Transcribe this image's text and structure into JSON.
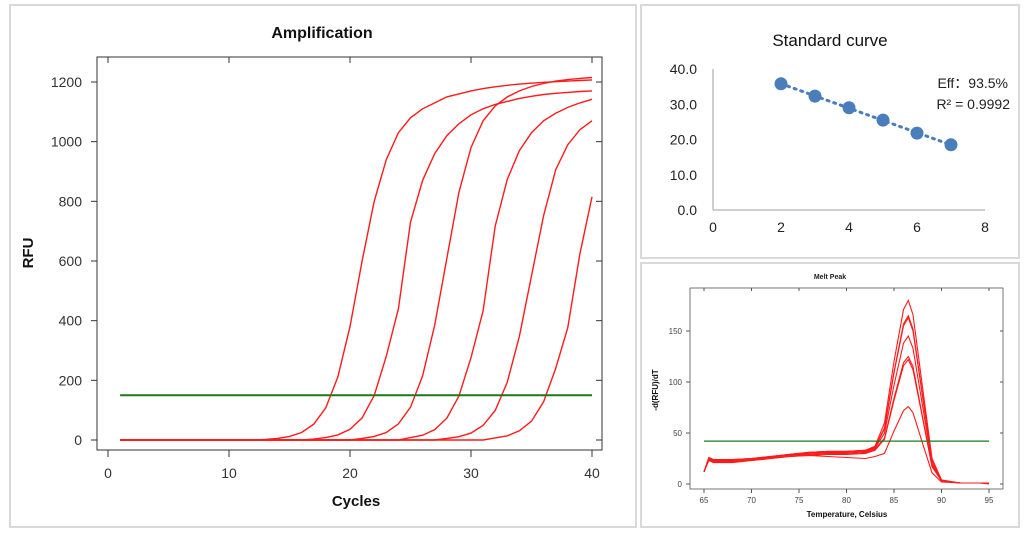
{
  "colors": {
    "curve": "#ff1a1a",
    "threshold": "#1a7a1a",
    "point": "#4a7ebb",
    "panel_border": "#d9d9d9"
  },
  "chart_data": [
    {
      "type": "line",
      "title": "Amplification",
      "xlabel": "Cycles",
      "ylabel": "RFU",
      "xlim": [
        0,
        40
      ],
      "ylim": [
        0,
        1200
      ],
      "xticks": [
        "0",
        "10",
        "20",
        "30",
        "40"
      ],
      "yticks": [
        "0",
        "200",
        "400",
        "600",
        "800",
        "1000",
        "1200"
      ],
      "threshold": 150,
      "grid": false,
      "x": [
        1,
        2,
        3,
        4,
        5,
        6,
        7,
        8,
        9,
        10,
        11,
        12,
        13,
        14,
        15,
        16,
        17,
        18,
        19,
        20,
        21,
        22,
        23,
        24,
        25,
        26,
        27,
        28,
        29,
        30,
        31,
        32,
        33,
        34,
        35,
        36,
        37,
        38,
        39,
        40
      ],
      "series": [
        {
          "values": [
            0,
            0,
            0,
            0,
            0,
            0,
            0,
            0,
            0,
            0,
            0,
            0,
            2,
            5,
            12,
            25,
            53,
            108,
            212,
            380,
            600,
            800,
            940,
            1030,
            1080,
            1110,
            1130,
            1150,
            1160,
            1170,
            1178,
            1184,
            1189,
            1193,
            1196,
            1199,
            1201,
            1203,
            1205,
            1207
          ]
        },
        {
          "values": [
            0,
            0,
            0,
            0,
            0,
            0,
            0,
            0,
            0,
            0,
            0,
            0,
            0,
            0,
            0,
            0,
            3,
            8,
            17,
            36,
            74,
            149,
            281,
            440,
            730,
            870,
            960,
            1020,
            1060,
            1090,
            1110,
            1125,
            1135,
            1145,
            1152,
            1158,
            1162,
            1165,
            1168,
            1170
          ]
        },
        {
          "values": [
            0,
            0,
            0,
            0,
            0,
            0,
            0,
            0,
            0,
            0,
            0,
            0,
            0,
            0,
            0,
            0,
            0,
            0,
            0,
            0,
            5,
            12,
            25,
            54,
            110,
            215,
            385,
            608,
            830,
            980,
            1070,
            1120,
            1150,
            1170,
            1185,
            1195,
            1203,
            1208,
            1212,
            1215
          ]
        },
        {
          "values": [
            0,
            0,
            0,
            0,
            0,
            0,
            0,
            0,
            0,
            0,
            0,
            0,
            0,
            0,
            0,
            0,
            0,
            0,
            0,
            0,
            0,
            0,
            0,
            0,
            8,
            16,
            35,
            73,
            147,
            276,
            433,
            717,
            874,
            970,
            1030,
            1070,
            1095,
            1115,
            1130,
            1142
          ]
        },
        {
          "values": [
            0,
            0,
            0,
            0,
            0,
            0,
            0,
            0,
            0,
            0,
            0,
            0,
            0,
            0,
            0,
            0,
            0,
            0,
            0,
            0,
            0,
            0,
            0,
            0,
            0,
            0,
            0,
            5,
            11,
            23,
            49,
            99,
            194,
            348,
            550,
            752,
            906,
            990,
            1040,
            1070
          ]
        },
        {
          "values": [
            0,
            0,
            0,
            0,
            0,
            0,
            0,
            0,
            0,
            0,
            0,
            0,
            0,
            0,
            0,
            0,
            0,
            0,
            0,
            0,
            0,
            0,
            0,
            0,
            0,
            0,
            0,
            0,
            0,
            0,
            0,
            7,
            14,
            31,
            63,
            128,
            240,
            377,
            624,
            815
          ]
        }
      ]
    },
    {
      "type": "scatter",
      "title": "Standard curve",
      "xlim": [
        0,
        8
      ],
      "ylim": [
        0,
        40
      ],
      "xticks": [
        "0",
        "2",
        "4",
        "6",
        "8"
      ],
      "yticks": [
        "0.0",
        "10.0",
        "20.0",
        "30.0",
        "40.0"
      ],
      "trendline": "dotted linear",
      "points": [
        {
          "x": 2,
          "y": 35.8
        },
        {
          "x": 3,
          "y": 32.3
        },
        {
          "x": 4,
          "y": 29.0
        },
        {
          "x": 5,
          "y": 25.5
        },
        {
          "x": 6,
          "y": 21.8
        },
        {
          "x": 7,
          "y": 18.5
        }
      ],
      "annotations": [
        "Eff：93.5%",
        "R² = 0.9992"
      ]
    },
    {
      "type": "line",
      "title": "Melt Peak",
      "xlabel": "Temperature, Celsius",
      "ylabel": "-d(RFU)/dT",
      "xlim": [
        65,
        95
      ],
      "ylim": [
        0,
        185
      ],
      "xticks": [
        "65",
        "70",
        "75",
        "80",
        "85",
        "90",
        "95"
      ],
      "yticks": [
        "0",
        "50",
        "100",
        "150"
      ],
      "threshold": 42,
      "x": [
        65,
        65.5,
        66,
        68,
        70,
        72,
        74,
        76,
        78,
        80,
        82,
        83,
        84,
        85,
        86,
        86.5,
        87,
        88,
        89,
        90,
        92,
        94,
        95
      ],
      "series": [
        {
          "values": [
            12,
            26,
            24,
            24,
            25,
            27,
            29,
            31,
            32,
            32,
            33,
            37,
            60,
            120,
            171,
            180,
            166,
            95,
            25,
            4,
            1,
            1,
            1
          ]
        },
        {
          "values": [
            12,
            25,
            23,
            23,
            25,
            27,
            29,
            31,
            32,
            32,
            33,
            36,
            55,
            110,
            157,
            165,
            152,
            87,
            23,
            3,
            1,
            1,
            1
          ]
        },
        {
          "values": [
            12,
            25,
            24,
            24,
            25,
            27,
            29,
            31,
            32,
            32,
            33,
            36,
            54,
            109,
            155,
            163,
            150,
            86,
            23,
            3,
            1,
            1,
            0
          ]
        },
        {
          "values": [
            12,
            24,
            22,
            22,
            24,
            26,
            28,
            30,
            31,
            31,
            32,
            35,
            50,
            97,
            138,
            145,
            133,
            77,
            20,
            3,
            1,
            1,
            1
          ]
        },
        {
          "values": [
            12,
            24,
            22,
            22,
            24,
            26,
            28,
            29,
            30,
            30,
            31,
            34,
            45,
            84,
            119,
            125,
            115,
            66,
            18,
            3,
            1,
            1,
            1
          ]
        },
        {
          "values": [
            12,
            23,
            21,
            21,
            23,
            25,
            27,
            28,
            29,
            29,
            30,
            33,
            44,
            82,
            116,
            122,
            112,
            65,
            17,
            3,
            1,
            1,
            1
          ]
        },
        {
          "values": [
            12,
            24,
            22,
            22,
            23,
            25,
            27,
            28,
            27,
            26,
            25,
            27,
            30,
            52,
            72,
            76,
            70,
            40,
            11,
            2,
            1,
            1,
            1
          ]
        }
      ]
    }
  ]
}
